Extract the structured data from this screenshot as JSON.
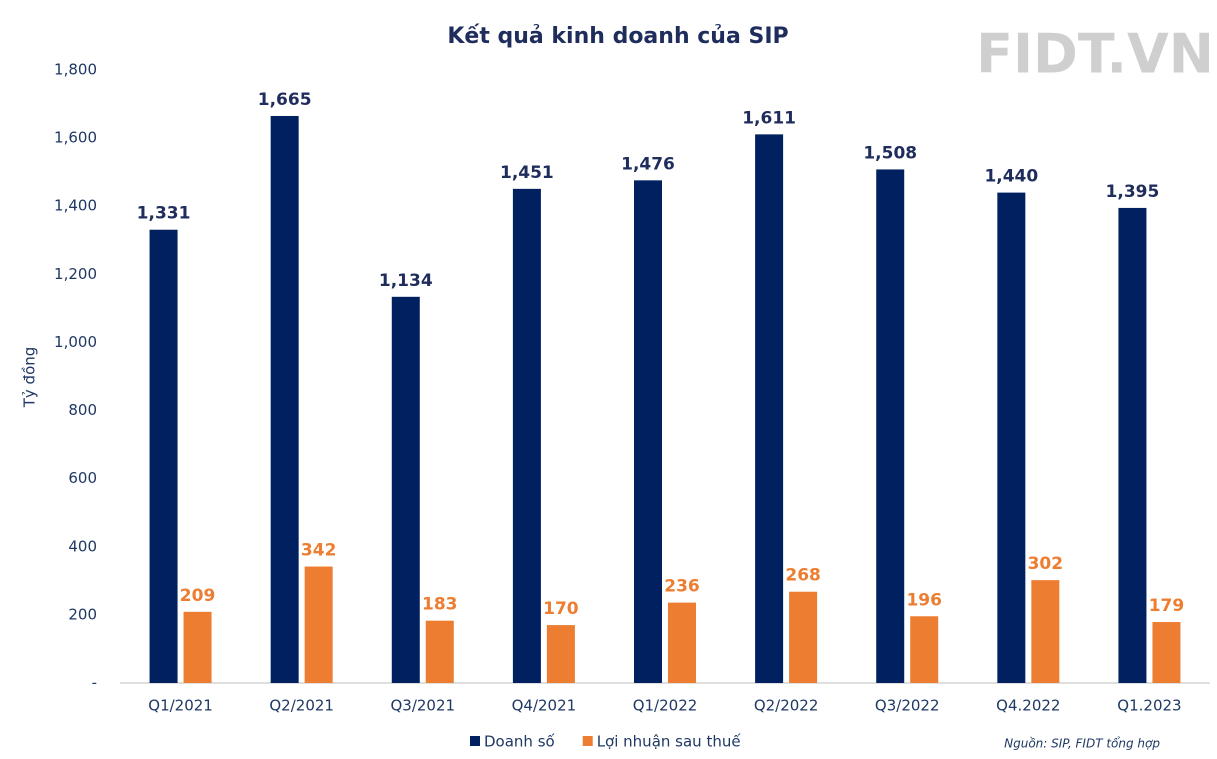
{
  "chart_data": {
    "type": "bar",
    "title": "Kết quả kinh doanh của SIP",
    "watermark": "FIDT.VN",
    "y_label": "Tỷ đồng",
    "source": "Nguồn: SIP, FIDT tổng hợp",
    "categories": [
      "Q1/2021",
      "Q2/2021",
      "Q3/2021",
      "Q4/2021",
      "Q1/2022",
      "Q2/2022",
      "Q3/2022",
      "Q4.2022",
      "Q1.2023"
    ],
    "series": [
      {
        "name": "Doanh số",
        "color": "#002060",
        "values": [
          1331,
          1665,
          1134,
          1451,
          1476,
          1611,
          1508,
          1440,
          1395
        ],
        "value_labels": [
          "1,331",
          "1,665",
          "1,134",
          "1,451",
          "1,476",
          "1,611",
          "1,508",
          "1,440",
          "1,395"
        ]
      },
      {
        "name": "Lợi nhuận sau thuế",
        "color": "#ed7d31",
        "values": [
          209,
          342,
          183,
          170,
          236,
          268,
          196,
          302,
          179
        ]
      }
    ],
    "ylim": [
      0,
      1800
    ],
    "yticks": [
      {
        "value": 0,
        "label": "-"
      },
      200,
      400,
      600,
      800,
      {
        "value": 1000,
        "label": "1,000"
      },
      {
        "value": 1200,
        "label": "1,200"
      },
      {
        "value": 1400,
        "label": "1,400"
      },
      {
        "value": 1600,
        "label": "1,600"
      },
      {
        "value": 1800,
        "label": "1,800"
      }
    ],
    "grid": false,
    "legend": "bottom"
  }
}
